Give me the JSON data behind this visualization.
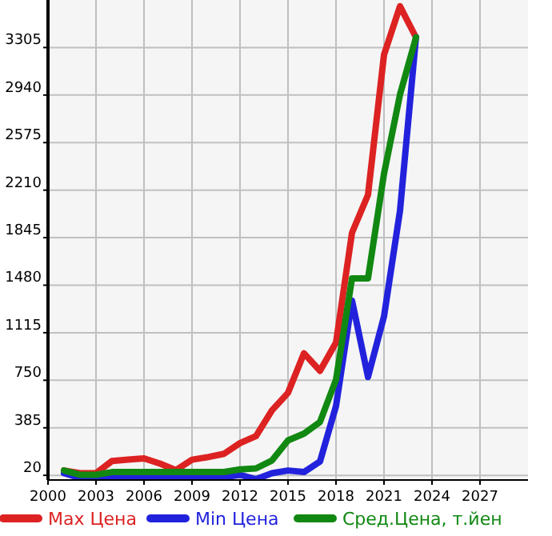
{
  "chart_data": {
    "type": "line",
    "x": [
      2001,
      2002,
      2003,
      2004,
      2005,
      2006,
      2007,
      2008,
      2009,
      2010,
      2011,
      2012,
      2013,
      2014,
      2015,
      2016,
      2017,
      2018,
      2019,
      2020,
      2021,
      2022,
      2023
    ],
    "series": [
      {
        "name": "Max Цена",
        "color": "#dd2222",
        "values": [
          57,
          36,
          36,
          130,
          140,
          150,
          110,
          60,
          140,
          160,
          185,
          267,
          321,
          519,
          653,
          957,
          823,
          1039,
          1882,
          2174,
          3249,
          3622,
          3383
        ]
      },
      {
        "name": "Min Цена",
        "color": "#2222dd",
        "values": [
          36,
          0,
          5,
          5,
          5,
          5,
          5,
          5,
          5,
          5,
          5,
          24,
          -10,
          36,
          57,
          45,
          126,
          552,
          1362,
          775,
          1240,
          2052,
          3383
        ]
      },
      {
        "name": "Сред.Цена, т.йен",
        "color": "#118811",
        "values": [
          57,
          24,
          24,
          45,
          45,
          45,
          45,
          45,
          45,
          45,
          45,
          65,
          73,
          134,
          288,
          340,
          430,
          754,
          1532,
          1532,
          2336,
          2944,
          3383
        ]
      }
    ],
    "xlim": [
      2000,
      2030
    ],
    "xticks": [
      2000,
      2003,
      2006,
      2009,
      2012,
      2015,
      2018,
      2021,
      2024,
      2027
    ],
    "ylim": [
      -16,
      3670
    ],
    "yticks": [
      20,
      385,
      750,
      1115,
      1480,
      1845,
      2210,
      2575,
      2940,
      3305
    ],
    "grid": true,
    "legend": "bottom",
    "marker": "none",
    "line_style": "solid"
  }
}
